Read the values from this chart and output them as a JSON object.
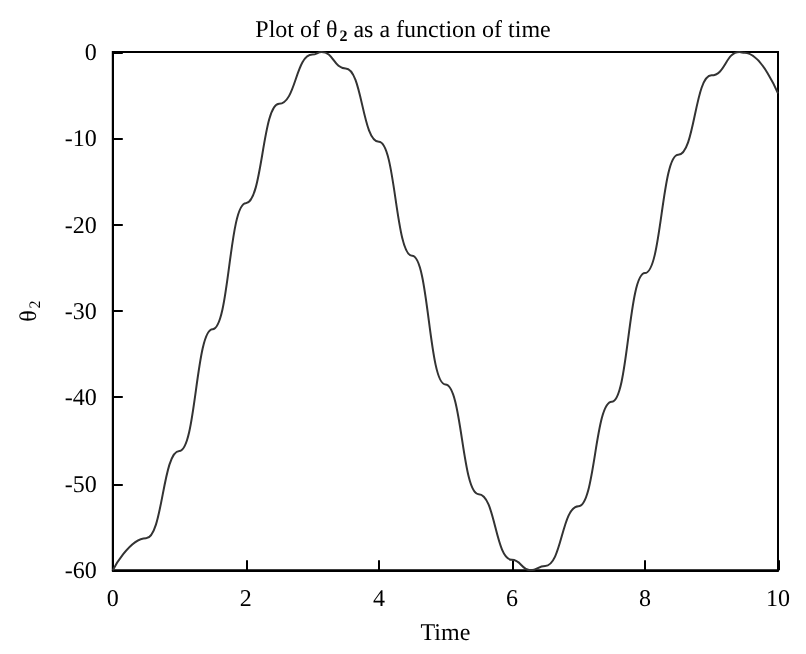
{
  "chart_data": {
    "type": "line",
    "title": "Plot of θ$_{2}$ as a function of time",
    "xlabel": "Time",
    "ylabel": "θ$_{2}$",
    "x": [
      0,
      0.5,
      1,
      1.5,
      2,
      2.5,
      3,
      3.14,
      3.5,
      4,
      4.5,
      5,
      5.5,
      6,
      6.28,
      6.5,
      7,
      7.5,
      8,
      8.5,
      9,
      9.42,
      9.5,
      10
    ],
    "series": [
      {
        "color": "#333333",
        "values": [
          -60,
          -56.3,
          -46.2,
          -32.1,
          -17.5,
          -6,
          -0.3,
          0,
          -1.9,
          -10.4,
          -23.6,
          -38.5,
          -51.2,
          -58.8,
          -60,
          -59.5,
          -52.6,
          -40.5,
          -25.6,
          -11.9,
          -2.7,
          0,
          -0.1,
          -4.8
        ]
      }
    ],
    "xlim": [
      0,
      10
    ],
    "xticks": [
      0,
      2,
      4,
      6,
      8,
      10
    ],
    "ylim": [
      -60,
      0
    ],
    "yticks": [
      -60,
      -50,
      -40,
      -30,
      -20,
      -10,
      0
    ],
    "marker": "none",
    "line_style": "solid"
  }
}
